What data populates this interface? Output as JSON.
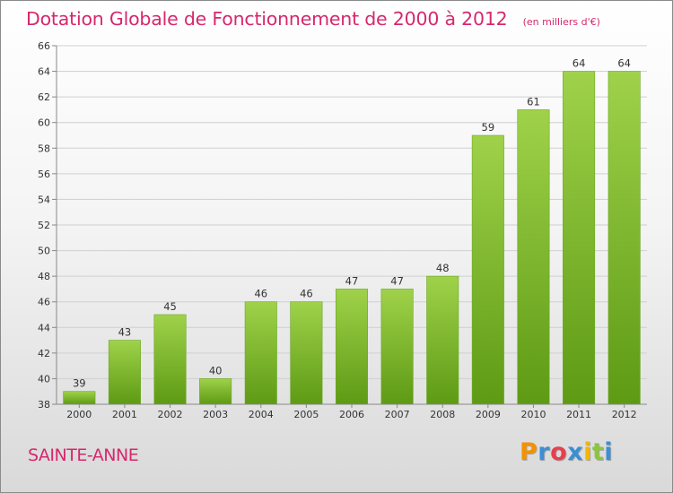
{
  "chart_data": {
    "type": "bar",
    "title": "Dotation Globale de Fonctionnement de 2000 à 2012",
    "subtitle": "(en milliers d'€)",
    "categories": [
      "2000",
      "2001",
      "2002",
      "2003",
      "2004",
      "2005",
      "2006",
      "2007",
      "2008",
      "2009",
      "2010",
      "2011",
      "2012"
    ],
    "values": [
      39,
      43,
      45,
      40,
      46,
      46,
      47,
      47,
      48,
      59,
      61,
      64,
      64
    ],
    "ylim": [
      38,
      66
    ],
    "yticks": [
      38,
      40,
      42,
      44,
      46,
      48,
      50,
      52,
      54,
      56,
      58,
      60,
      62,
      64,
      66
    ],
    "grid": true,
    "bar_color": "#7cbb2c"
  },
  "commune": "SAINTE-ANNE",
  "logo": {
    "text": "Proxiti",
    "letter_colors": [
      "#f39200",
      "#3a8fd6",
      "#e5404f",
      "#3a8fd6",
      "#f2b705",
      "#8cc63f",
      "#3a8fd6"
    ]
  }
}
